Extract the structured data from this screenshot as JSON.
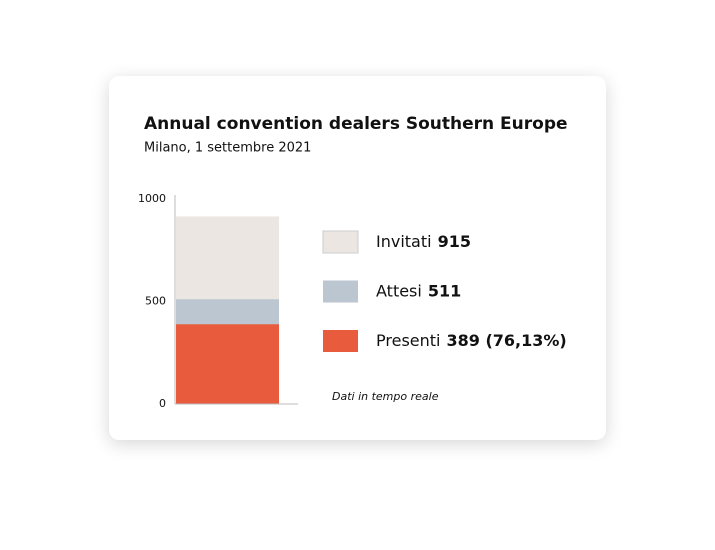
{
  "chart_data": {
    "type": "bar",
    "title": "Annual convention dealers Southern Europe",
    "subtitle": "Milano, 1 settembre 2021",
    "annotation": "Dati in tempo reale",
    "series": [
      {
        "name": "Invitati",
        "color": "#ebe6e1",
        "values": [
          915
        ],
        "value_labels": [
          "915"
        ]
      },
      {
        "name": "Attesi",
        "color": "#bcc6d0",
        "values": [
          511
        ],
        "value_labels": [
          "511"
        ]
      },
      {
        "name": "Presenti",
        "color": "#e85c3d",
        "values": [
          389
        ],
        "value_labels": [
          "389 (76,13%)"
        ]
      }
    ],
    "ylim": [
      0,
      1000
    ],
    "yticks": [
      0,
      500,
      1000
    ]
  }
}
